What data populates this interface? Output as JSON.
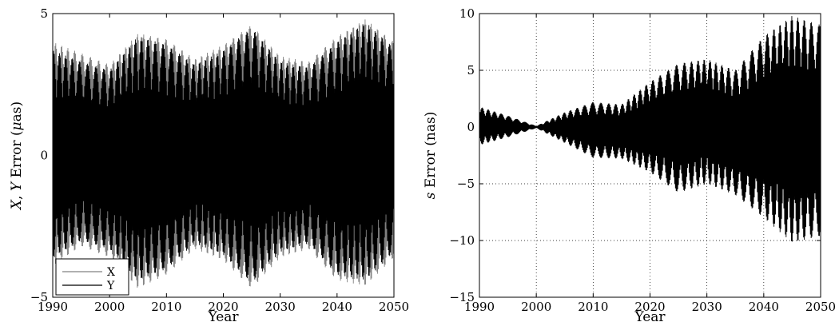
{
  "chart_data": [
    {
      "type": "line",
      "xlabel": "Year",
      "ylabel_parts": [
        "X",
        ", ",
        "Y",
        " Error (",
        "μ",
        "as)"
      ],
      "xlim": [
        1990,
        2050
      ],
      "ylim": [
        -5,
        5
      ],
      "xticks": [
        "1990",
        "2000",
        "2010",
        "2020",
        "2030",
        "2040",
        "2050"
      ],
      "yticks": [
        "-5",
        "0",
        "5"
      ],
      "grid": false,
      "legend": {
        "placement": "bottom-left",
        "entries": [
          {
            "label": "X",
            "color": "#808080"
          },
          {
            "label": "Y",
            "color": "#000000"
          }
        ]
      },
      "series": [
        {
          "name": "X",
          "color": "#808080",
          "envelope_x": [
            1990,
            1995,
            2000,
            2005,
            2010,
            2015,
            2020,
            2025,
            2030,
            2035,
            2040,
            2045,
            2050
          ],
          "envelope_max": [
            4.0,
            3.6,
            3.2,
            4.3,
            4.1,
            3.4,
            3.9,
            4.6,
            3.5,
            3.3,
            4.2,
            4.8,
            4.0
          ],
          "envelope_min": [
            -3.9,
            -3.2,
            -3.6,
            -4.7,
            -4.2,
            -3.3,
            -3.7,
            -4.7,
            -3.6,
            -3.3,
            -4.4,
            -4.6,
            -3.6
          ]
        },
        {
          "name": "Y",
          "color": "#000000",
          "envelope_x": [
            1990,
            1995,
            2000,
            2005,
            2010,
            2015,
            2020,
            2025,
            2030,
            2035,
            2040,
            2045,
            2050
          ],
          "envelope_max": [
            3.7,
            3.3,
            3.0,
            4.2,
            3.9,
            3.2,
            3.7,
            4.5,
            3.3,
            3.1,
            4.0,
            4.7,
            3.8
          ],
          "envelope_min": [
            -3.6,
            -3.0,
            -3.3,
            -4.4,
            -4.0,
            -3.1,
            -3.5,
            -4.5,
            -3.4,
            -3.1,
            -4.2,
            -4.4,
            -3.4
          ]
        }
      ]
    },
    {
      "type": "line",
      "xlabel": "Year",
      "ylabel_parts": [
        "s",
        " Error (nas)"
      ],
      "xlim": [
        1990,
        2050
      ],
      "ylim": [
        -15,
        10
      ],
      "xticks": [
        "1990",
        "2000",
        "2010",
        "2020",
        "2030",
        "2040",
        "2050"
      ],
      "yticks": [
        "-15",
        "-10",
        "-5",
        "0",
        "5",
        "10"
      ],
      "grid": true,
      "series": [
        {
          "name": "s",
          "color": "#000000",
          "envelope_x": [
            1990,
            1995,
            2000,
            2005,
            2010,
            2015,
            2020,
            2025,
            2030,
            2035,
            2040,
            2045,
            2050
          ],
          "envelope_max": [
            1.8,
            1.0,
            0.1,
            1.3,
            2.2,
            2.0,
            4.0,
            5.6,
            6.0,
            5.0,
            8.0,
            9.8,
            9.0
          ],
          "envelope_min": [
            -1.6,
            -0.9,
            -0.1,
            -1.4,
            -2.7,
            -2.8,
            -4.0,
            -5.8,
            -5.0,
            -6.0,
            -8.0,
            -10.2,
            -9.6
          ]
        }
      ]
    }
  ]
}
